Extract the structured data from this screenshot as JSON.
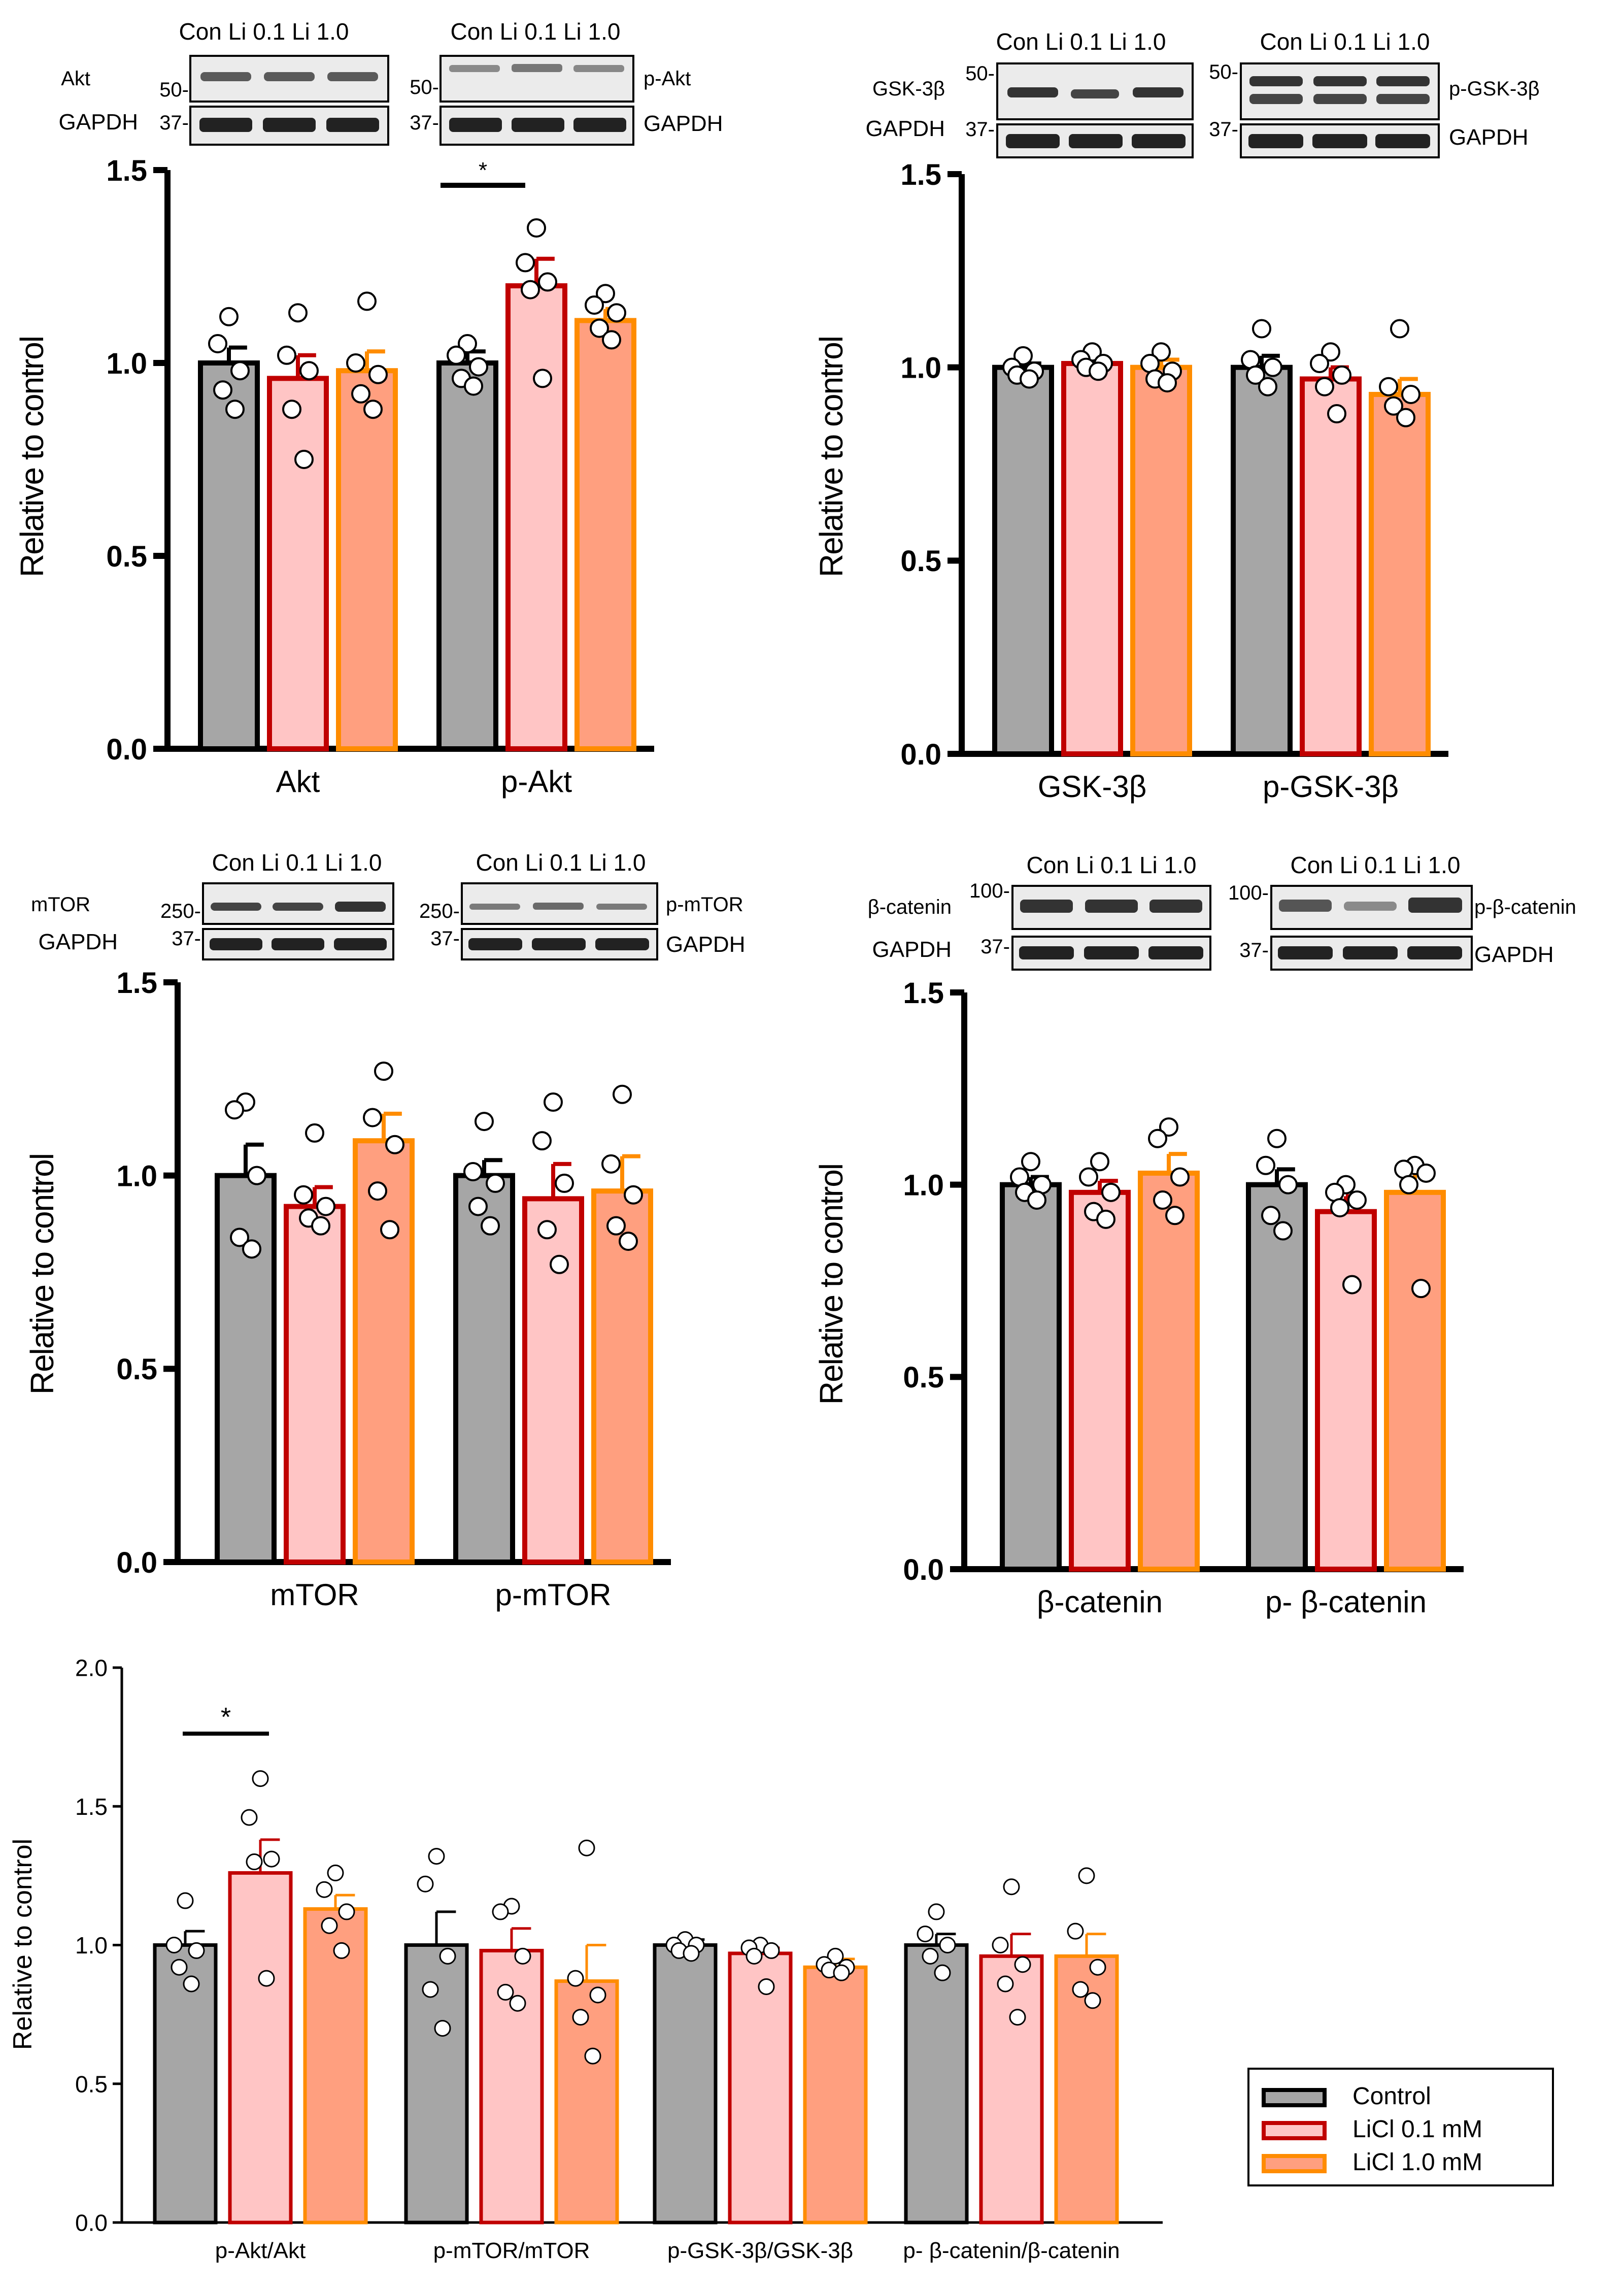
{
  "colors": {
    "control_fill": "#a6a6a6",
    "control_edge": "#000000",
    "li01_fill": "#ffc5c5",
    "li01_edge": "#c00000",
    "li10_fill": "#ff9f7f",
    "li10_edge": "#ff8c00",
    "blot_bg": "#ebebeb",
    "blot_band": "#2a2a2a"
  },
  "legend": {
    "items": [
      "Control",
      "LiCl 0.1 mM",
      "LiCl 1.0 mM"
    ]
  },
  "blots": {
    "lanes_label": "Con Li 0.1 Li 1.0",
    "gapdh": "GAPDH",
    "mw_37": "37-",
    "akt": {
      "name": "Akt",
      "mw": "50-"
    },
    "pakt": {
      "name": "p-Akt",
      "mw": "50-"
    },
    "gsk": {
      "name": "GSK-3β",
      "mw": "50-"
    },
    "pgsk": {
      "name": "p-GSK-3β",
      "mw": "50-"
    },
    "mtor": {
      "name": "mTOR",
      "mw": "250-"
    },
    "pmtor": {
      "name": "p-mTOR",
      "mw": "250-"
    },
    "bcat": {
      "name": "β-catenin",
      "mw": "100-"
    },
    "pbcat": {
      "name": "p-β-catenin",
      "mw": "100-"
    }
  },
  "chart_data": [
    {
      "id": "A",
      "type": "bar",
      "ylabel": "Relative to control",
      "ylim": [
        0,
        1.5
      ],
      "yticks": [
        "0.0",
        "0.5",
        "1.0",
        "1.5"
      ],
      "categories": [
        "Akt",
        "p-Akt"
      ],
      "series": [
        {
          "name": "Control",
          "values": [
            1.0,
            1.0
          ],
          "sem": [
            0.04,
            0.03
          ],
          "points": [
            [
              1.12,
              1.05,
              0.98,
              0.93,
              0.88
            ],
            [
              1.05,
              1.02,
              0.99,
              0.96,
              0.94
            ]
          ]
        },
        {
          "name": "LiCl 0.1 mM",
          "values": [
            0.96,
            1.2
          ],
          "sem": [
            0.06,
            0.07
          ],
          "points": [
            [
              1.13,
              1.02,
              0.98,
              0.88,
              0.75
            ],
            [
              1.35,
              1.26,
              1.21,
              1.19,
              0.96
            ]
          ]
        },
        {
          "name": "LiCl 1.0 mM",
          "values": [
            0.98,
            1.11
          ],
          "sem": [
            0.05,
            0.03
          ],
          "points": [
            [
              1.16,
              1.0,
              0.97,
              0.92,
              0.88
            ],
            [
              1.18,
              1.15,
              1.13,
              1.09,
              1.06
            ]
          ]
        }
      ],
      "annotations": [
        {
          "text": "*",
          "between": "p-Akt: Control vs LiCl 0.1 mM"
        }
      ]
    },
    {
      "id": "B",
      "type": "bar",
      "ylabel": "Relative to control",
      "ylim": [
        0,
        1.5
      ],
      "yticks": [
        "0.0",
        "0.5",
        "1.0",
        "1.5"
      ],
      "categories": [
        "GSK-3β",
        "p-GSK-3β"
      ],
      "series": [
        {
          "name": "Control",
          "values": [
            1.0,
            1.0
          ],
          "sem": [
            0.01,
            0.03
          ],
          "points": [
            [
              1.03,
              1.0,
              0.99,
              0.98,
              0.97
            ],
            [
              1.1,
              1.02,
              1.0,
              0.98,
              0.95
            ]
          ]
        },
        {
          "name": "LiCl 0.1 mM",
          "values": [
            1.01,
            0.97
          ],
          "sem": [
            0.01,
            0.03
          ],
          "points": [
            [
              1.04,
              1.02,
              1.01,
              1.0,
              0.99
            ],
            [
              1.04,
              1.01,
              0.98,
              0.95,
              0.88
            ]
          ]
        },
        {
          "name": "LiCl 1.0 mM",
          "values": [
            1.0,
            0.93
          ],
          "sem": [
            0.02,
            0.04
          ],
          "points": [
            [
              1.04,
              1.01,
              0.99,
              0.97,
              0.96
            ],
            [
              1.1,
              0.95,
              0.93,
              0.9,
              0.87
            ]
          ]
        }
      ]
    },
    {
      "id": "C",
      "type": "bar",
      "ylabel": "Relative to control",
      "ylim": [
        0,
        1.5
      ],
      "yticks": [
        "0.0",
        "0.5",
        "1.0",
        "1.5"
      ],
      "categories": [
        "mTOR",
        "p-mTOR"
      ],
      "series": [
        {
          "name": "Control",
          "values": [
            1.0,
            1.0
          ],
          "sem": [
            0.08,
            0.04
          ],
          "points": [
            [
              1.19,
              1.17,
              1.0,
              0.84,
              0.81
            ],
            [
              1.14,
              1.01,
              0.98,
              0.92,
              0.87
            ]
          ]
        },
        {
          "name": "LiCl 0.1 mM",
          "values": [
            0.92,
            0.94
          ],
          "sem": [
            0.05,
            0.09
          ],
          "points": [
            [
              1.11,
              0.95,
              0.92,
              0.89,
              0.87
            ],
            [
              1.19,
              1.09,
              0.98,
              0.86,
              0.77
            ]
          ]
        },
        {
          "name": "LiCl 1.0 mM",
          "values": [
            1.09,
            0.96
          ],
          "sem": [
            0.07,
            0.09
          ],
          "points": [
            [
              1.27,
              1.15,
              1.08,
              0.96,
              0.86
            ],
            [
              1.21,
              1.03,
              0.95,
              0.87,
              0.83
            ]
          ]
        }
      ]
    },
    {
      "id": "D",
      "type": "bar",
      "ylabel": "Relative to control",
      "ylim": [
        0,
        1.5
      ],
      "yticks": [
        "0.0",
        "0.5",
        "1.0",
        "1.5"
      ],
      "categories": [
        "β-catenin",
        "p- β-catenin"
      ],
      "series": [
        {
          "name": "Control",
          "values": [
            1.0,
            1.0
          ],
          "sem": [
            0.02,
            0.04
          ],
          "points": [
            [
              1.06,
              1.02,
              1.0,
              0.98,
              0.96
            ],
            [
              1.12,
              1.05,
              1.0,
              0.92,
              0.88
            ]
          ]
        },
        {
          "name": "LiCl 0.1 mM",
          "values": [
            0.98,
            0.93
          ],
          "sem": [
            0.03,
            0.04
          ],
          "points": [
            [
              1.06,
              1.02,
              0.98,
              0.93,
              0.91
            ],
            [
              1.0,
              0.98,
              0.96,
              0.94,
              0.74
            ]
          ]
        },
        {
          "name": "LiCl 1.0 mM",
          "values": [
            1.03,
            0.98
          ],
          "sem": [
            0.05,
            0.06
          ],
          "points": [
            [
              1.15,
              1.12,
              1.02,
              0.96,
              0.92
            ],
            [
              1.05,
              1.04,
              1.03,
              1.0,
              0.73
            ]
          ]
        }
      ]
    },
    {
      "id": "E",
      "type": "bar",
      "ylabel": "Relative to control",
      "ylim": [
        0,
        2.0
      ],
      "yticks": [
        "0.0",
        "0.5",
        "1.0",
        "1.5",
        "2.0"
      ],
      "categories": [
        "p-Akt/Akt",
        "p-mTOR/mTOR",
        "p-GSK-3β/GSK-3β",
        "p- β-catenin/β-catenin"
      ],
      "series": [
        {
          "name": "Control",
          "values": [
            1.0,
            1.0,
            1.0,
            1.0
          ],
          "sem": [
            0.05,
            0.12,
            0.02,
            0.04
          ],
          "points": [
            [
              1.16,
              1.0,
              0.98,
              0.92,
              0.86
            ],
            [
              1.32,
              1.22,
              0.96,
              0.84,
              0.7
            ],
            [
              1.02,
              1.0,
              1.0,
              0.98,
              0.97
            ],
            [
              1.12,
              1.04,
              1.0,
              0.96,
              0.9
            ]
          ]
        },
        {
          "name": "LiCl 0.1 mM",
          "values": [
            1.26,
            0.98,
            0.97,
            0.96
          ],
          "sem": [
            0.12,
            0.08,
            0.02,
            0.08
          ],
          "points": [
            [
              1.6,
              1.46,
              1.31,
              1.3,
              0.88
            ],
            [
              1.14,
              1.12,
              0.96,
              0.83,
              0.79
            ],
            [
              1.0,
              0.99,
              0.98,
              0.96,
              0.85
            ],
            [
              1.21,
              1.0,
              0.93,
              0.86,
              0.74
            ]
          ]
        },
        {
          "name": "LiCl 1.0 mM",
          "values": [
            1.13,
            0.87,
            0.92,
            0.96
          ],
          "sem": [
            0.05,
            0.13,
            0.03,
            0.08
          ],
          "points": [
            [
              1.26,
              1.2,
              1.12,
              1.07,
              0.98
            ],
            [
              1.35,
              0.88,
              0.82,
              0.74,
              0.6
            ],
            [
              0.96,
              0.93,
              0.92,
              0.91,
              0.9
            ],
            [
              1.25,
              1.05,
              0.92,
              0.84,
              0.8
            ]
          ]
        }
      ],
      "annotations": [
        {
          "text": "*",
          "between": "p-Akt/Akt: Control vs LiCl 0.1 mM"
        }
      ]
    }
  ]
}
